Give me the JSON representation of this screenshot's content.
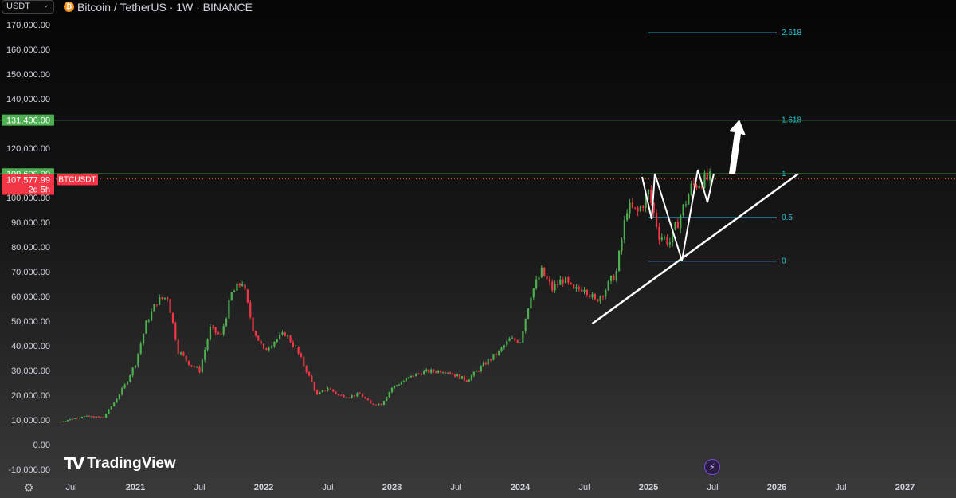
{
  "header": {
    "currency": "USDT",
    "symbol_title": "Bitcoin / TetherUS · 1W · BINANCE"
  },
  "branding": {
    "logo_text": "TradingView"
  },
  "price_badges": [
    {
      "text": "131,400.00",
      "value": 131400,
      "color": "#4caf50"
    },
    {
      "text": "109,600.00",
      "value": 109600,
      "color": "#4caf50"
    },
    {
      "text": "107,577.99",
      "value": 107578,
      "color": "#f23645"
    }
  ],
  "current_price": {
    "value": "107,577.99",
    "countdown": "2d 5h",
    "ticker": "BTCUSDT"
  },
  "fib_levels": [
    {
      "label": "2.618",
      "value": 166700
    },
    {
      "label": "1.618",
      "value": 131400
    },
    {
      "label": "1",
      "value": 109600
    },
    {
      "label": "0.5",
      "value": 91900
    },
    {
      "label": "0",
      "value": 74300
    }
  ],
  "horizontal_lines": [
    {
      "name": "resistance-131400",
      "value": 131400,
      "color": "#4caf50"
    },
    {
      "name": "resistance-109600",
      "value": 109600,
      "color": "#4caf50"
    }
  ],
  "chart_data": {
    "type": "candlestick",
    "title": "Bitcoin / TetherUS · 1W · BINANCE",
    "y_ticks": [
      {
        "value": 170000,
        "label": "170,000.00"
      },
      {
        "value": 160000,
        "label": "160,000.00"
      },
      {
        "value": 150000,
        "label": "150,000.00"
      },
      {
        "value": 140000,
        "label": "140,000.00"
      },
      {
        "value": 120000,
        "label": "120,000.00"
      },
      {
        "value": 100000,
        "label": "100,000.00"
      },
      {
        "value": 90000,
        "label": "90,000.00"
      },
      {
        "value": 80000,
        "label": "80,000.00"
      },
      {
        "value": 70000,
        "label": "70,000.00"
      },
      {
        "value": 60000,
        "label": "60,000.00"
      },
      {
        "value": 50000,
        "label": "50,000.00"
      },
      {
        "value": 40000,
        "label": "40,000.00"
      },
      {
        "value": 30000,
        "label": "30,000.00"
      },
      {
        "value": 20000,
        "label": "20,000.00"
      },
      {
        "value": 10000,
        "label": "10,000.00"
      },
      {
        "value": 0,
        "label": "0.00"
      },
      {
        "value": -10000,
        "label": "-10,000.00"
      }
    ],
    "x_ticks": [
      {
        "date": "2020-07",
        "label": "Jul",
        "bold": false
      },
      {
        "date": "2021-01",
        "label": "2021",
        "bold": true
      },
      {
        "date": "2021-07",
        "label": "Jul",
        "bold": false
      },
      {
        "date": "2022-01",
        "label": "2022",
        "bold": true
      },
      {
        "date": "2022-07",
        "label": "Jul",
        "bold": false
      },
      {
        "date": "2023-01",
        "label": "2023",
        "bold": true
      },
      {
        "date": "2023-07",
        "label": "Jul",
        "bold": false
      },
      {
        "date": "2024-01",
        "label": "2024",
        "bold": true
      },
      {
        "date": "2024-07",
        "label": "Jul",
        "bold": false
      },
      {
        "date": "2025-01",
        "label": "2025",
        "bold": true
      },
      {
        "date": "2025-07",
        "label": "Jul",
        "bold": false
      },
      {
        "date": "2026-01",
        "label": "2026",
        "bold": true
      },
      {
        "date": "2026-07",
        "label": "Jul",
        "bold": false
      },
      {
        "date": "2027-01",
        "label": "2027",
        "bold": true
      }
    ],
    "price_path": [
      [
        "2020-06",
        9300
      ],
      [
        "2020-08",
        11500
      ],
      [
        "2020-10",
        11000
      ],
      [
        "2020-11",
        17000
      ],
      [
        "2020-12",
        24000
      ],
      [
        "2021-01",
        33000
      ],
      [
        "2021-02",
        49000
      ],
      [
        "2021-03",
        58000
      ],
      [
        "2021-04",
        60000
      ],
      [
        "2021-05",
        38000
      ],
      [
        "2021-06",
        33000
      ],
      [
        "2021-07",
        30000
      ],
      [
        "2021-08",
        47000
      ],
      [
        "2021-09",
        44000
      ],
      [
        "2021-10",
        61000
      ],
      [
        "2021-11",
        66000
      ],
      [
        "2021-12",
        47000
      ],
      [
        "2022-01",
        38000
      ],
      [
        "2022-02",
        42000
      ],
      [
        "2022-03",
        45000
      ],
      [
        "2022-04",
        39000
      ],
      [
        "2022-05",
        30000
      ],
      [
        "2022-06",
        20000
      ],
      [
        "2022-07",
        23000
      ],
      [
        "2022-08",
        20000
      ],
      [
        "2022-09",
        19500
      ],
      [
        "2022-10",
        20500
      ],
      [
        "2022-11",
        16500
      ],
      [
        "2022-12",
        16500
      ],
      [
        "2023-01",
        23000
      ],
      [
        "2023-03",
        28000
      ],
      [
        "2023-04",
        29500
      ],
      [
        "2023-06",
        30000
      ],
      [
        "2023-08",
        26000
      ],
      [
        "2023-10",
        34000
      ],
      [
        "2023-11",
        37500
      ],
      [
        "2023-12",
        42500
      ],
      [
        "2024-01",
        42000
      ],
      [
        "2024-02",
        61000
      ],
      [
        "2024-03",
        70000
      ],
      [
        "2024-04",
        63000
      ],
      [
        "2024-05",
        67000
      ],
      [
        "2024-06",
        62000
      ],
      [
        "2024-07",
        64000
      ],
      [
        "2024-08",
        58000
      ],
      [
        "2024-09",
        63000
      ],
      [
        "2024-10",
        70000
      ],
      [
        "2024-11",
        96000
      ],
      [
        "2024-12",
        94000
      ],
      [
        "2025-01",
        102000
      ],
      [
        "2025-02",
        85000
      ],
      [
        "2025-03",
        82000
      ],
      [
        "2025-04",
        93000
      ],
      [
        "2025-05",
        104000
      ],
      [
        "2025-06",
        107000
      ],
      [
        "2025-07",
        107578
      ]
    ],
    "trendline": {
      "from": [
        "2024-07",
        49000
      ],
      "to": [
        "2026-03",
        109600
      ]
    },
    "pattern_points": [
      [
        "2024-12",
        108000
      ],
      [
        "2025-01",
        96000
      ],
      [
        "2025-01",
        109000
      ],
      [
        "2025-04",
        74500
      ],
      [
        "2025-05",
        109600
      ],
      [
        "2025-06",
        97000
      ],
      [
        "2025-07",
        109600
      ]
    ],
    "projection_arrow": {
      "from": [
        "2025-07",
        109600
      ],
      "to": [
        "2025-08",
        131400
      ]
    },
    "ylim": [
      -10000,
      175000
    ],
    "grid": false,
    "legend": "none"
  }
}
